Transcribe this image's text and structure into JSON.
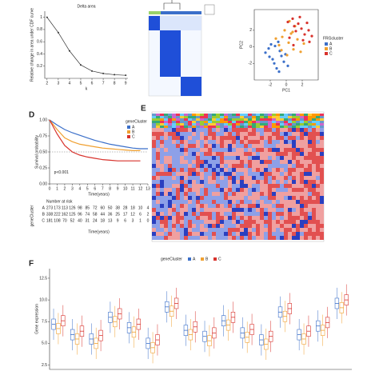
{
  "panels": {
    "labels": [
      "D",
      "E",
      "F"
    ]
  },
  "chart_data": [
    {
      "type": "line",
      "title": "Delta area",
      "xlabel": "k",
      "ylabel": "Relative change in area under CDF curve",
      "x": [
        2,
        3,
        4,
        5,
        6,
        7,
        8,
        9
      ],
      "values": [
        1.0,
        0.75,
        0.45,
        0.22,
        0.12,
        0.08,
        0.06,
        0.05
      ],
      "color": "#333333",
      "xlim": [
        1.8,
        9.2
      ],
      "xticks": [
        2,
        3,
        4,
        5,
        6,
        7,
        8,
        9
      ],
      "ylim": [
        0,
        1.1
      ],
      "yticks": [
        0.2,
        0.4,
        0.6,
        0.8,
        1.0
      ]
    },
    {
      "type": "scatter",
      "xlabel": "PC1",
      "ylabel": "PC2",
      "legend_title": "FRGcluster",
      "xlim": [
        -4,
        4
      ],
      "ylim": [
        -4,
        4.5
      ],
      "xticks": [
        -2,
        0,
        2
      ],
      "yticks": [
        -2,
        0,
        2
      ],
      "series": [
        {
          "name": "A",
          "color": "#3b6fc9",
          "x": [
            -2.1,
            -1.5,
            -0.8,
            -1.9,
            -0.3,
            -1.2,
            -2.6,
            -0.6,
            -1.0,
            -1.7,
            0.2,
            -2.2,
            -0.9,
            -1.4,
            -0.1
          ],
          "values": [
            -1.2,
            -2.0,
            -0.5,
            0.3,
            -1.8,
            -2.6,
            -0.7,
            -1.1,
            0.6,
            -1.5,
            -2.3,
            -0.2,
            -3.0,
            0.1,
            -0.9
          ]
        },
        {
          "name": "B",
          "color": "#f0a030",
          "x": [
            0.3,
            -0.5,
            0.9,
            1.4,
            -0.2,
            0.6,
            1.8,
            -0.9,
            0.1,
            1.1,
            -1.3,
            0.4,
            2.2,
            -0.6,
            0.8
          ],
          "values": [
            0.5,
            1.2,
            -0.3,
            0.9,
            2.0,
            1.6,
            -0.6,
            0.2,
            -1.0,
            2.5,
            1.0,
            3.1,
            0.4,
            -0.4,
            1.8
          ]
        },
        {
          "name": "C",
          "color": "#d8322c",
          "x": [
            1.5,
            2.3,
            0.8,
            2.9,
            1.9,
            0.4,
            2.6,
            1.2,
            3.2,
            1.7,
            0.9,
            2.1,
            1.0,
            2.8,
            0.2
          ],
          "values": [
            2.8,
            1.5,
            3.4,
            0.6,
            2.2,
            1.1,
            2.9,
            1.9,
            1.3,
            3.6,
            0.2,
            0.8,
            2.5,
            2.0,
            3.0
          ]
        }
      ]
    },
    {
      "type": "line",
      "ylabel": "Survival probability",
      "xlabel": "Time(years)",
      "legend_title": "geneCluster",
      "annotation": "p<0.001",
      "x": [
        0,
        1,
        2,
        3,
        4,
        5,
        6,
        7,
        8,
        9,
        10,
        11,
        12,
        13
      ],
      "xlim": [
        0,
        13
      ],
      "xticks": [
        0,
        1,
        2,
        3,
        4,
        5,
        6,
        7,
        8,
        9,
        10,
        11,
        12,
        13
      ],
      "ylim": [
        0,
        1
      ],
      "yticks": [
        {
          "value": 0,
          "label": "0.00"
        },
        {
          "value": 0.25,
          "label": "0.25"
        },
        {
          "value": 0.5,
          "label": "0.50"
        },
        {
          "value": 0.75,
          "label": "0.75"
        },
        {
          "value": 1,
          "label": "1.00"
        }
      ],
      "series": [
        {
          "name": "A",
          "color": "#3b6fc9",
          "values": [
            1,
            0.92,
            0.85,
            0.8,
            0.76,
            0.72,
            0.68,
            0.65,
            0.62,
            0.6,
            0.58,
            0.56,
            0.55,
            0.55
          ]
        },
        {
          "name": "B",
          "color": "#f0a030",
          "values": [
            1,
            0.85,
            0.72,
            0.66,
            0.62,
            0.6,
            0.58,
            0.56,
            0.55,
            0.54,
            0.53,
            0.52,
            0.52,
            null
          ]
        },
        {
          "name": "C",
          "color": "#d8322c",
          "values": [
            1,
            0.78,
            0.6,
            0.5,
            0.45,
            0.42,
            0.4,
            0.38,
            0.37,
            0.36,
            0.36,
            0.36,
            0.36,
            null
          ]
        }
      ],
      "risk_table": {
        "title": "Number at risk",
        "ylabel": "geneCluster",
        "xlabel": "Time(years)",
        "rows": [
          {
            "name": "A",
            "values": [
              273,
              173,
              113,
              126,
              98,
              85,
              72,
              60,
              50,
              38,
              28,
              18,
              10,
              4
            ]
          },
          {
            "name": "B",
            "values": [
              338,
              222,
              162,
              125,
              96,
              74,
              58,
              44,
              36,
              25,
              17,
              12,
              6,
              2
            ]
          },
          {
            "name": "C",
            "values": [
              181,
              108,
              70,
              52,
              40,
              31,
              24,
              18,
              13,
              9,
              6,
              3,
              1,
              0
            ]
          }
        ]
      }
    },
    {
      "type": "box",
      "ylabel": "Gene expression",
      "legend_title": "geneCluster",
      "categories": [
        null,
        null,
        null,
        null,
        null,
        null,
        null,
        null,
        null,
        null,
        null,
        null,
        null,
        null,
        null,
        null
      ],
      "ylim": [
        2,
        13.6
      ],
      "yticks": [
        2.5,
        {
          "value": 5,
          "label": "5.0"
        },
        7.5,
        {
          "value": 10,
          "label": "10.0"
        },
        12.5
      ],
      "series": [
        {
          "name": "A",
          "color": "#3b6fc9",
          "values": [
            [
              5.4,
              6.6,
              7.2,
              7.8,
              9.0
            ],
            [
              4.2,
              5.4,
              6.0,
              6.6,
              7.8
            ],
            [
              3.7,
              4.9,
              5.5,
              6.1,
              7.3
            ],
            [
              6.2,
              7.4,
              8.0,
              8.6,
              9.8
            ],
            [
              5.0,
              6.2,
              6.8,
              7.4,
              8.6
            ],
            [
              3.2,
              4.4,
              5.0,
              5.6,
              6.8
            ],
            [
              7.4,
              8.6,
              9.2,
              9.8,
              11.0
            ],
            [
              4.7,
              5.9,
              6.5,
              7.1,
              8.3
            ],
            [
              4.0,
              5.2,
              5.8,
              6.4,
              7.6
            ],
            [
              5.8,
              7.0,
              7.6,
              8.2,
              9.4
            ],
            [
              4.4,
              5.6,
              6.2,
              6.8,
              8.0
            ],
            [
              3.6,
              4.8,
              5.4,
              6.0,
              7.2
            ],
            [
              6.8,
              8.0,
              8.6,
              9.2,
              10.4
            ],
            [
              4.2,
              5.4,
              6.0,
              6.6,
              7.8
            ],
            [
              5.2,
              6.4,
              7.0,
              7.6,
              8.8
            ],
            [
              7.8,
              9.0,
              9.6,
              10.2,
              11.4
            ]
          ]
        },
        {
          "name": "B",
          "color": "#f0a030",
          "values": [
            [
              4.9,
              6.1,
              6.7,
              7.3,
              8.5
            ],
            [
              3.7,
              4.9,
              5.5,
              6.1,
              7.3
            ],
            [
              3.2,
              4.4,
              5.0,
              5.6,
              6.8
            ],
            [
              5.7,
              6.9,
              7.5,
              8.1,
              9.3
            ],
            [
              4.5,
              5.7,
              6.3,
              6.9,
              8.1
            ],
            [
              2.7,
              3.9,
              4.5,
              5.1,
              6.3
            ],
            [
              6.9,
              8.1,
              8.7,
              9.3,
              10.5
            ],
            [
              4.2,
              5.4,
              6.0,
              6.6,
              7.8
            ],
            [
              3.5,
              4.7,
              5.3,
              5.9,
              7.1
            ],
            [
              5.3,
              6.5,
              7.1,
              7.7,
              8.9
            ],
            [
              3.9,
              5.1,
              5.7,
              6.3,
              7.5
            ],
            [
              3.1,
              4.3,
              4.9,
              5.5,
              6.7
            ],
            [
              6.3,
              7.5,
              8.1,
              8.7,
              9.9
            ],
            [
              3.7,
              4.9,
              5.5,
              6.1,
              7.3
            ],
            [
              4.7,
              5.9,
              6.5,
              7.1,
              8.3
            ],
            [
              7.3,
              8.5,
              9.1,
              9.7,
              10.9
            ]
          ]
        },
        {
          "name": "C",
          "color": "#d8322c",
          "values": [
            [
              5.8,
              7.0,
              7.6,
              8.2,
              9.4
            ],
            [
              4.6,
              5.8,
              6.4,
              7.0,
              8.2
            ],
            [
              4.1,
              5.3,
              5.9,
              6.5,
              7.7
            ],
            [
              6.6,
              7.8,
              8.4,
              9.0,
              10.2
            ],
            [
              5.4,
              6.6,
              7.2,
              7.8,
              9.0
            ],
            [
              3.6,
              4.8,
              5.4,
              6.0,
              7.2
            ],
            [
              7.8,
              9.0,
              9.6,
              10.2,
              11.4
            ],
            [
              5.1,
              6.3,
              6.9,
              7.5,
              8.7
            ],
            [
              4.4,
              5.6,
              6.2,
              6.8,
              8.0
            ],
            [
              6.2,
              7.4,
              8.0,
              8.6,
              9.8
            ],
            [
              4.8,
              6.0,
              6.6,
              7.2,
              8.4
            ],
            [
              4.0,
              5.2,
              5.8,
              6.4,
              7.6
            ],
            [
              7.2,
              8.4,
              9.0,
              9.6,
              10.8
            ],
            [
              4.6,
              5.8,
              6.4,
              7.0,
              8.2
            ],
            [
              5.6,
              6.8,
              7.4,
              8.0,
              9.2
            ],
            [
              8.2,
              9.4,
              10.0,
              10.6,
              11.8
            ]
          ]
        }
      ]
    }
  ]
}
